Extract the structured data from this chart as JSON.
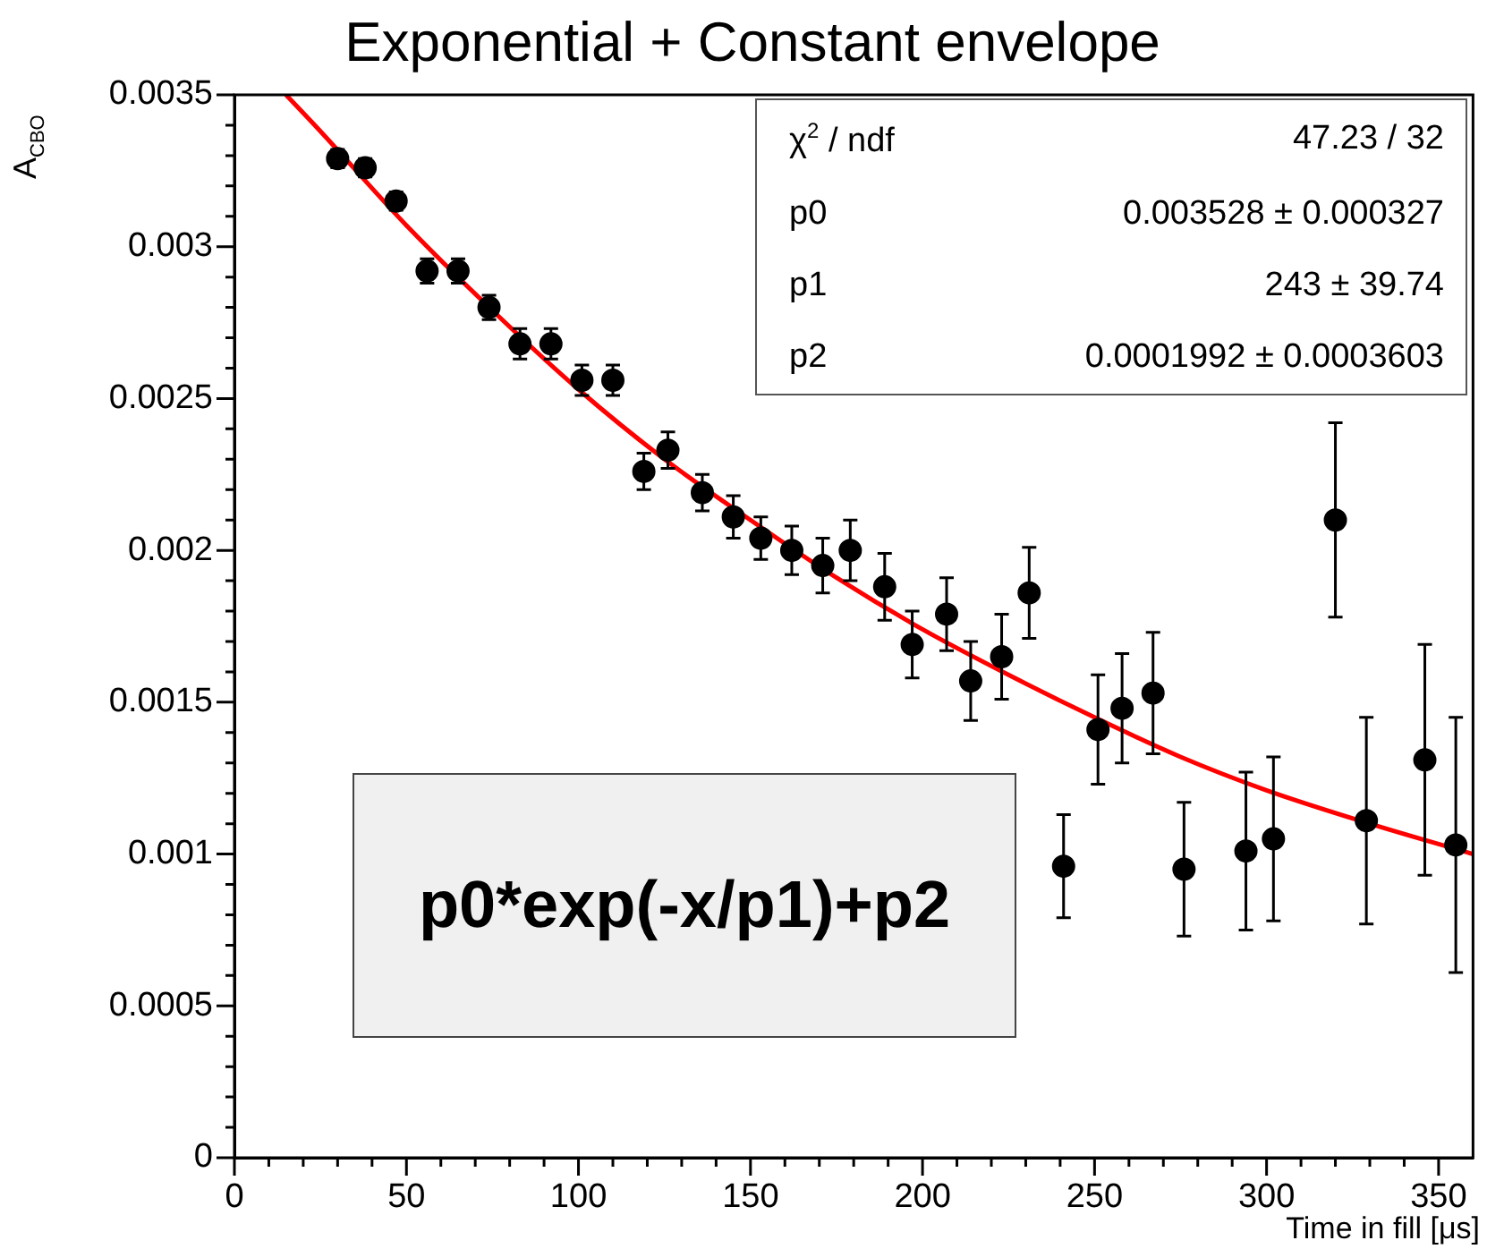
{
  "chart_data": {
    "type": "scatter",
    "title": "Exponential + Constant envelope",
    "xlabel": "Time in fill [μs]",
    "ylabel": "A$_{CBO}$",
    "xlim": [
      0,
      360
    ],
    "xticks": [
      0,
      {
        "value": 10,
        "label": null
      },
      {
        "value": 20,
        "label": null
      },
      {
        "value": 30,
        "label": null
      },
      {
        "value": 40,
        "label": null
      },
      50,
      {
        "value": 60,
        "label": null
      },
      {
        "value": 70,
        "label": null
      },
      {
        "value": 80,
        "label": null
      },
      {
        "value": 90,
        "label": null
      },
      100,
      {
        "value": 110,
        "label": null
      },
      {
        "value": 120,
        "label": null
      },
      {
        "value": 130,
        "label": null
      },
      {
        "value": 140,
        "label": null
      },
      150,
      {
        "value": 160,
        "label": null
      },
      {
        "value": 170,
        "label": null
      },
      {
        "value": 180,
        "label": null
      },
      {
        "value": 190,
        "label": null
      },
      200,
      {
        "value": 210,
        "label": null
      },
      {
        "value": 220,
        "label": null
      },
      {
        "value": 230,
        "label": null
      },
      {
        "value": 240,
        "label": null
      },
      250,
      {
        "value": 260,
        "label": null
      },
      {
        "value": 270,
        "label": null
      },
      {
        "value": 280,
        "label": null
      },
      {
        "value": 290,
        "label": null
      },
      300,
      {
        "value": 310,
        "label": null
      },
      {
        "value": 320,
        "label": null
      },
      {
        "value": 330,
        "label": null
      },
      {
        "value": 340,
        "label": null
      },
      350
    ],
    "ylim": [
      0,
      0.0035
    ],
    "yticks": [
      0,
      {
        "value": 0.0001,
        "label": null
      },
      {
        "value": 0.0002,
        "label": null
      },
      {
        "value": 0.0003,
        "label": null
      },
      {
        "value": 0.0004,
        "label": null
      },
      0.0005,
      {
        "value": 0.0006,
        "label": null
      },
      {
        "value": 0.0007,
        "label": null
      },
      {
        "value": 0.0008,
        "label": null
      },
      {
        "value": 0.0009,
        "label": null
      },
      0.001,
      {
        "value": 0.0011,
        "label": null
      },
      {
        "value": 0.0012,
        "label": null
      },
      {
        "value": 0.0013,
        "label": null
      },
      {
        "value": 0.0014,
        "label": null
      },
      0.0015,
      {
        "value": 0.0016,
        "label": null
      },
      {
        "value": 0.0017,
        "label": null
      },
      {
        "value": 0.0018,
        "label": null
      },
      {
        "value": 0.0019,
        "label": null
      },
      0.002,
      {
        "value": 0.0021,
        "label": null
      },
      {
        "value": 0.0022,
        "label": null
      },
      {
        "value": 0.0023,
        "label": null
      },
      {
        "value": 0.0024,
        "label": null
      },
      0.0025,
      {
        "value": 0.0026,
        "label": null
      },
      {
        "value": 0.0027,
        "label": null
      },
      {
        "value": 0.0028,
        "label": null
      },
      {
        "value": 0.0029,
        "label": null
      },
      0.003,
      {
        "value": 0.0031,
        "label": null
      },
      {
        "value": 0.0032,
        "label": null
      },
      {
        "value": 0.0033,
        "label": null
      },
      {
        "value": 0.0034,
        "label": null
      },
      0.0035
    ],
    "grid": false,
    "legend": false,
    "series": [
      {
        "type": "scatter",
        "marker": "circle",
        "color": "#000000",
        "x": [
          30,
          38,
          47,
          56,
          65,
          74,
          83,
          92,
          101,
          110,
          119,
          126,
          136,
          145,
          153,
          162,
          171,
          179,
          189,
          197,
          207,
          214,
          223,
          231,
          241,
          251,
          258,
          267,
          276,
          294,
          302,
          320,
          329,
          346,
          355
        ],
        "values": [
          0.00329,
          0.00326,
          0.00315,
          0.00292,
          0.00292,
          0.0028,
          0.00268,
          0.00268,
          0.00256,
          0.00256,
          0.00226,
          0.00233,
          0.00219,
          0.00211,
          0.00204,
          0.002,
          0.00195,
          0.002,
          0.00188,
          0.00169,
          0.00179,
          0.00157,
          0.00165,
          0.00186,
          0.00096,
          0.00141,
          0.00148,
          0.00153,
          0.00095,
          0.00101,
          0.00105,
          0.0021,
          0.00111,
          0.00131,
          0.00103
        ],
        "errors": [
          3e-05,
          3e-05,
          3e-05,
          4e-05,
          4e-05,
          4e-05,
          5e-05,
          5e-05,
          5e-05,
          5e-05,
          6e-05,
          6e-05,
          6e-05,
          7e-05,
          7e-05,
          8e-05,
          9e-05,
          0.0001,
          0.00011,
          0.00011,
          0.00012,
          0.00013,
          0.00014,
          0.00015,
          0.00017,
          0.00018,
          0.00018,
          0.0002,
          0.00022,
          0.00026,
          0.00027,
          0.00032,
          0.00034,
          0.00038,
          0.00042
        ]
      },
      {
        "type": "line",
        "marker": "none",
        "color": "#ff0000",
        "x": [
          15,
          25,
          50,
          75,
          100,
          125,
          150,
          175,
          200,
          225,
          250,
          275,
          300,
          330,
          360
        ],
        "values": [
          0.0035,
          0.00338,
          0.00307,
          0.00279,
          0.00253,
          0.0023,
          0.0021,
          0.00191,
          0.00174,
          0.00159,
          0.00145,
          0.00132,
          0.00121,
          0.0011,
          0.001
        ]
      }
    ],
    "annotations": [
      "χ$^{2}$ / ndf",
      "47.23 / 32",
      "p0",
      "0.003528 ± 0.000327",
      "p1",
      "243 ± 39.74",
      "p2",
      "0.0001992 ± 0.0003603",
      "p0*exp(-x/p1)+p2"
    ]
  }
}
